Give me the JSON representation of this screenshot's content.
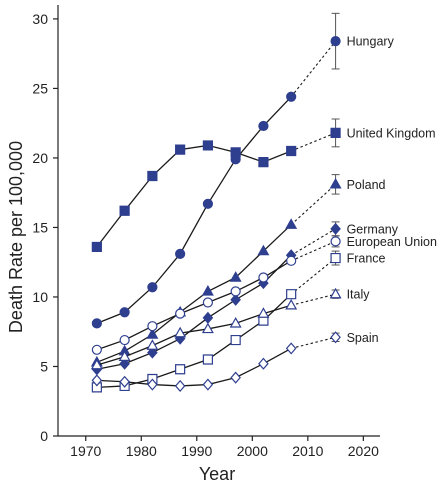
{
  "chart_data": {
    "type": "line",
    "xlabel": "Year",
    "ylabel": "Death Rate per 100,000",
    "xlim": [
      1965,
      2023
    ],
    "ylim": [
      0,
      31
    ],
    "xticks": [
      1970,
      1980,
      1990,
      2000,
      2010,
      2020
    ],
    "yticks": [
      0,
      5,
      10,
      15,
      20,
      25,
      30
    ],
    "grid": false,
    "legend": "inline labels at right end of each series",
    "line_color": "#2f3f8f",
    "series": [
      {
        "name": "Hungary",
        "marker": "filled-circle",
        "x": [
          1972,
          1977,
          1982,
          1987,
          1992,
          1997,
          2002,
          2007
        ],
        "y": [
          8.1,
          8.9,
          10.7,
          13.1,
          16.7,
          19.9,
          22.3,
          24.4
        ],
        "projection": {
          "x": 2015,
          "y": 28.4,
          "err": 2.0
        }
      },
      {
        "name": "United Kingdom",
        "marker": "filled-square",
        "x": [
          1972,
          1977,
          1982,
          1987,
          1992,
          1997,
          2002,
          2007
        ],
        "y": [
          13.6,
          16.2,
          18.7,
          20.6,
          20.9,
          20.4,
          19.7,
          20.5
        ],
        "projection": {
          "x": 2015,
          "y": 21.8,
          "err": 1.0
        }
      },
      {
        "name": "Poland",
        "marker": "filled-triangle",
        "x": [
          1972,
          1977,
          1982,
          1987,
          1992,
          1997,
          2002,
          2007
        ],
        "y": [
          5.3,
          6.1,
          7.3,
          8.9,
          10.4,
          11.4,
          13.3,
          15.2
        ],
        "projection": {
          "x": 2015,
          "y": 18.1,
          "err": 0.7
        }
      },
      {
        "name": "Germany",
        "marker": "filled-diamond",
        "x": [
          1972,
          1977,
          1982,
          1987,
          1992,
          1997,
          2002,
          2007
        ],
        "y": [
          4.8,
          5.2,
          6.0,
          7.0,
          8.5,
          9.8,
          11.0,
          13.0
        ],
        "projection": {
          "x": 2015,
          "y": 14.9,
          "err": 0.5
        }
      },
      {
        "name": "European Union",
        "marker": "open-circle",
        "x": [
          1972,
          1977,
          1982,
          1987,
          1992,
          1997,
          2002,
          2007
        ],
        "y": [
          6.2,
          6.9,
          7.9,
          8.8,
          9.6,
          10.4,
          11.4,
          12.6
        ],
        "projection": {
          "x": 2015,
          "y": 14.0,
          "err": 0.4
        }
      },
      {
        "name": "France",
        "marker": "open-square",
        "x": [
          1972,
          1977,
          1982,
          1987,
          1992,
          1997,
          2002,
          2007
        ],
        "y": [
          3.5,
          3.6,
          4.1,
          4.8,
          5.5,
          6.9,
          8.3,
          10.2
        ],
        "projection": {
          "x": 2015,
          "y": 12.8,
          "err": 0.5
        }
      },
      {
        "name": "Italy",
        "marker": "open-triangle",
        "x": [
          1972,
          1977,
          1982,
          1987,
          1992,
          1997,
          2002,
          2007
        ],
        "y": [
          5.1,
          5.7,
          6.5,
          7.4,
          7.7,
          8.1,
          8.8,
          9.4
        ],
        "projection": {
          "x": 2015,
          "y": 10.2,
          "err": 0.3
        }
      },
      {
        "name": "Spain",
        "marker": "open-diamond",
        "x": [
          1972,
          1977,
          1982,
          1987,
          1992,
          1997,
          2002,
          2007
        ],
        "y": [
          4.0,
          3.9,
          3.7,
          3.6,
          3.7,
          4.2,
          5.2,
          6.3
        ],
        "projection": {
          "x": 2015,
          "y": 7.1,
          "err": 0.3
        }
      }
    ]
  }
}
